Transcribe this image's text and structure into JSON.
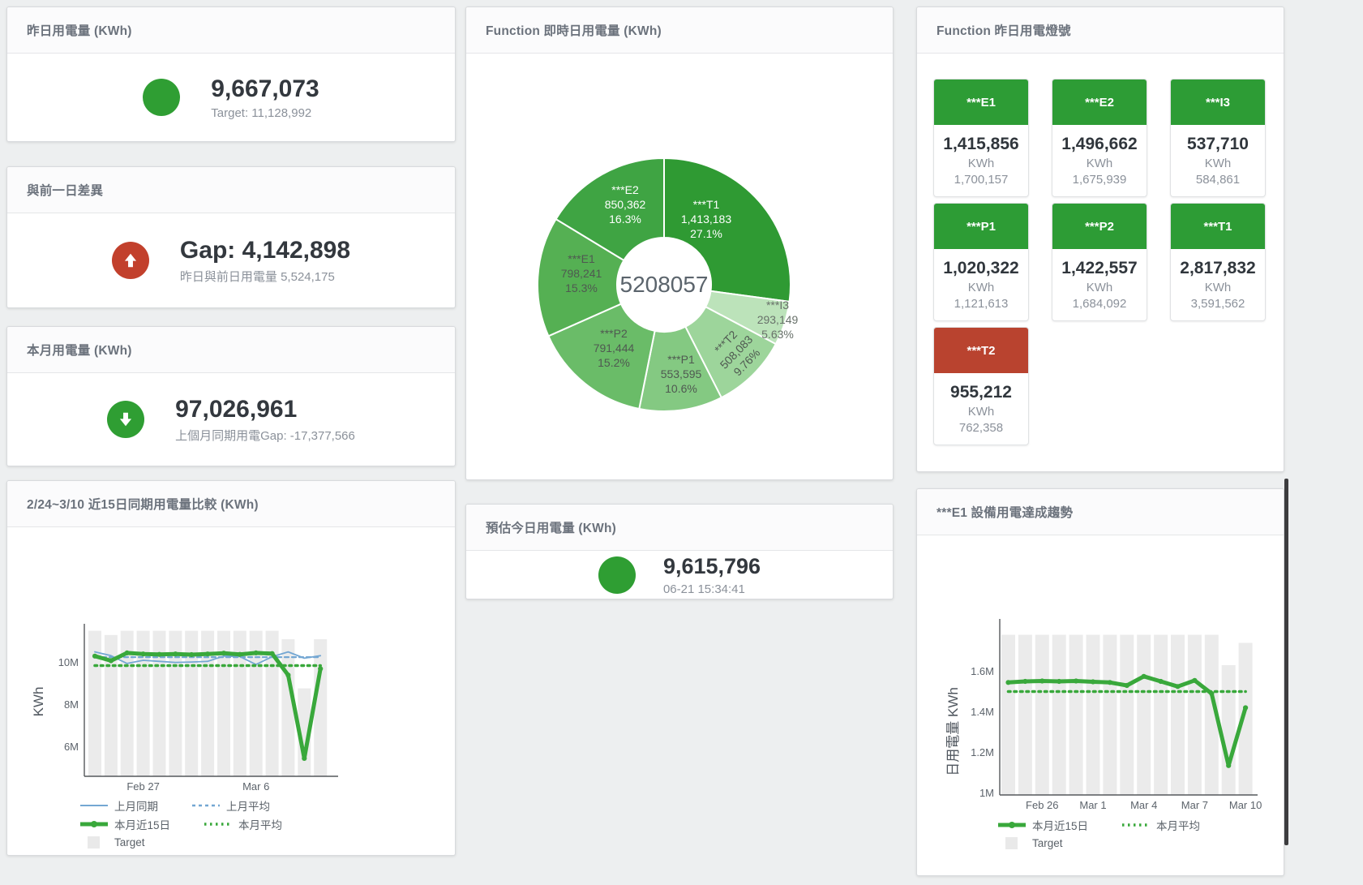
{
  "colors": {
    "green": "#2f9e33",
    "red": "#c2402c",
    "status_green": "#2d9c35",
    "status_red": "#b9432f",
    "chart_green": "#39a83b",
    "chart_blue": "#74a7d3",
    "target_bar": "#ebebeb"
  },
  "cards": {
    "yesterday": {
      "title": "昨日用電量 (KWh)",
      "value": "9,667,073",
      "subtext": "Target: 11,128,992"
    },
    "day_gap": {
      "title": "與前一日差異",
      "value": "Gap: 4,142,898",
      "subtext": "昨日與前日用電量 5,524,175"
    },
    "month": {
      "title": "本月用電量 (KWh)",
      "value": "97,026,961",
      "subtext": "上個月同期用電Gap: -17,377,566"
    },
    "forecast": {
      "title": "預估今日用電量 (KWh)",
      "value": "9,615,796",
      "subtext": "06-21 15:34:41"
    }
  },
  "lights": {
    "title": "Function 昨日用電燈號",
    "unit": "KWh",
    "tiles": [
      {
        "label": "***E1",
        "value": "1,415,856",
        "target": "1,700,157",
        "status": "green"
      },
      {
        "label": "***E2",
        "value": "1,496,662",
        "target": "1,675,939",
        "status": "green"
      },
      {
        "label": "***I3",
        "value": "537,710",
        "target": "584,861",
        "status": "green"
      },
      {
        "label": "***P1",
        "value": "1,020,322",
        "target": "1,121,613",
        "status": "green"
      },
      {
        "label": "***P2",
        "value": "1,422,557",
        "target": "1,684,092",
        "status": "green"
      },
      {
        "label": "***T1",
        "value": "2,817,832",
        "target": "3,591,562",
        "status": "green"
      },
      {
        "label": "***T2",
        "value": "955,212",
        "target": "762,358",
        "status": "red"
      }
    ]
  },
  "chart_data": [
    {
      "type": "pie",
      "title": "Function 即時日用電量 (KWh)",
      "center_total": "5208057",
      "slices": [
        {
          "name": "***T1",
          "value": 1413183,
          "pct": "27.1%",
          "color": "#2f9a33",
          "label_color": "#ffffff"
        },
        {
          "name": "***I3",
          "value": 293149,
          "pct": "5.63%",
          "color": "#bce3ba",
          "label_color": "#68716a"
        },
        {
          "name": "***T2",
          "value": 508083,
          "pct": "9.76%",
          "color": "#9dd59b",
          "label_color": "#4f5951"
        },
        {
          "name": "***P1",
          "value": 553595,
          "pct": "10.6%",
          "color": "#84c982",
          "label_color": "#4f5951"
        },
        {
          "name": "***P2",
          "value": 791444,
          "pct": "15.2%",
          "color": "#6abc68",
          "label_color": "#4f5951"
        },
        {
          "name": "***E1",
          "value": 798241,
          "pct": "15.3%",
          "color": "#55b053",
          "label_color": "#4f5951"
        },
        {
          "name": "***E2",
          "value": 850362,
          "pct": "16.3%",
          "color": "#3fa443",
          "label_color": "#ffffff"
        }
      ]
    },
    {
      "type": "line",
      "title": "2/24~3/10 近15日同期用電量比較 (KWh)",
      "ylabel": "KWh",
      "days": 15,
      "ylim": [
        4.6,
        11.6
      ],
      "yticks": [
        {
          "label": "6M",
          "value": 6
        },
        {
          "label": "8M",
          "value": 8
        },
        {
          "label": "10M",
          "value": 10
        }
      ],
      "xticks": [
        {
          "label": "Feb 27",
          "day": 4
        },
        {
          "label": "Mar 6",
          "day": 11
        }
      ],
      "target_bars": {
        "name": "Target",
        "color": "#ebebeb",
        "values": [
          11.5,
          11.3,
          11.5,
          11.5,
          11.5,
          11.5,
          11.5,
          11.5,
          11.5,
          11.5,
          11.5,
          11.5,
          11.1,
          8.77,
          11.1
        ]
      },
      "series": [
        {
          "name": "上月同期",
          "style": "thin",
          "color": "#74a7d3",
          "values": [
            10.5,
            10.32,
            9.95,
            10.1,
            10.05,
            10.0,
            10.02,
            10.05,
            10.3,
            10.28,
            9.9,
            10.27,
            10.5,
            10.2,
            10.32
          ]
        },
        {
          "name": "上月平均",
          "style": "dashed",
          "color": "#74a7d3",
          "constant": 10.25
        },
        {
          "name": "本月平均",
          "style": "dotted",
          "color": "#39a83b",
          "constant": 9.85
        },
        {
          "name": "本月近15日",
          "style": "thick",
          "color": "#39a83b",
          "values": [
            10.3,
            10.08,
            10.45,
            10.4,
            10.38,
            10.4,
            10.37,
            10.4,
            10.44,
            10.38,
            10.45,
            10.42,
            9.4,
            5.45,
            9.7
          ]
        }
      ],
      "legend_rows": [
        [
          {
            "label": "上月同期",
            "style": "thin",
            "color": "#74a7d3"
          },
          {
            "label": "上月平均",
            "style": "dashed",
            "color": "#74a7d3"
          }
        ],
        [
          {
            "label": "本月近15日",
            "style": "thick",
            "color": "#39a83b"
          },
          {
            "label": "本月平均",
            "style": "dotted",
            "color": "#39a83b"
          }
        ],
        [
          {
            "label": "Target",
            "style": "box",
            "color": "#e9e9e9"
          }
        ]
      ]
    },
    {
      "type": "line",
      "title": "***E1 設備用電達成趨勢",
      "ylabel": "日用電量 KWh",
      "days": 15,
      "ylim": [
        0.99,
        1.8
      ],
      "yticks": [
        {
          "label": "1M",
          "value": 1
        },
        {
          "label": "1.2M",
          "value": 1.2
        },
        {
          "label": "1.4M",
          "value": 1.4
        },
        {
          "label": "1.6M",
          "value": 1.6
        }
      ],
      "xticks": [
        {
          "label": "Feb 26",
          "day": 3
        },
        {
          "label": "Mar 1",
          "day": 6
        },
        {
          "label": "Mar 4",
          "day": 9
        },
        {
          "label": "Mar 7",
          "day": 12
        },
        {
          "label": "Mar 10",
          "day": 15
        }
      ],
      "target_bars": {
        "name": "Target",
        "color": "#ebebeb",
        "values": [
          1.78,
          1.78,
          1.78,
          1.78,
          1.78,
          1.78,
          1.78,
          1.78,
          1.78,
          1.78,
          1.78,
          1.78,
          1.78,
          1.63,
          1.74
        ]
      },
      "series": [
        {
          "name": "本月平均",
          "style": "dotted",
          "color": "#39a83b",
          "constant": 1.5
        },
        {
          "name": "本月近15日",
          "style": "thick",
          "color": "#39a83b",
          "values": [
            1.545,
            1.55,
            1.552,
            1.55,
            1.552,
            1.548,
            1.545,
            1.53,
            1.575,
            1.55,
            1.525,
            1.555,
            1.49,
            1.135,
            1.42
          ]
        }
      ],
      "legend_rows": [
        [
          {
            "label": "本月近15日",
            "style": "thick",
            "color": "#39a83b"
          },
          {
            "label": "本月平均",
            "style": "dotted",
            "color": "#39a83b"
          }
        ],
        [
          {
            "label": "Target",
            "style": "box",
            "color": "#e9e9e9"
          }
        ]
      ]
    }
  ]
}
